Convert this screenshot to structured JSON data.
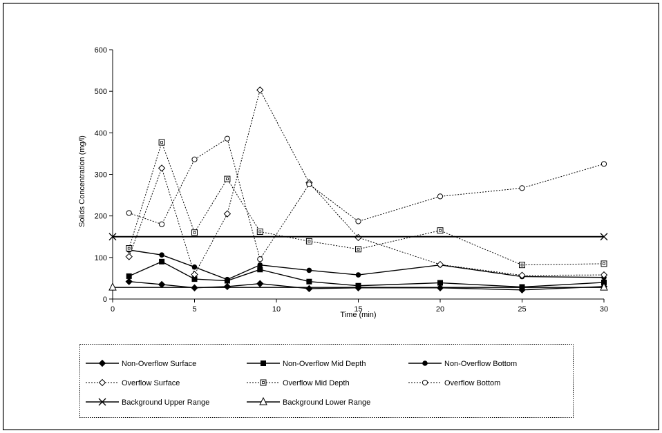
{
  "chart_data": {
    "type": "line",
    "xlabel": "Time (min)",
    "ylabel": "Solids Concentration (mg/l)",
    "xlim": [
      0,
      30
    ],
    "ylim": [
      0,
      600
    ],
    "xticks": [
      0,
      5,
      10,
      15,
      20,
      25,
      30
    ],
    "yticks": [
      0,
      100,
      200,
      300,
      400,
      500,
      600
    ],
    "legend_position": "bottom",
    "series": [
      {
        "name": "Non-Overflow Surface",
        "style": "solid",
        "marker": "diamond-filled",
        "x": [
          1,
          3,
          5,
          7,
          9,
          12,
          15,
          20,
          25,
          30
        ],
        "y": [
          42,
          35,
          27,
          30,
          37,
          25,
          27,
          27,
          22,
          30
        ]
      },
      {
        "name": "Non-Overflow Mid Depth",
        "style": "solid",
        "marker": "square-filled",
        "x": [
          1,
          3,
          5,
          7,
          9,
          12,
          15,
          20,
          25,
          30
        ],
        "y": [
          55,
          90,
          48,
          44,
          71,
          42,
          32,
          39,
          29,
          40
        ]
      },
      {
        "name": "Non-Overflow Bottom",
        "style": "solid",
        "marker": "circle-filled",
        "x": [
          1,
          3,
          5,
          7,
          9,
          12,
          15,
          20,
          25,
          30
        ],
        "y": [
          118,
          106,
          77,
          47,
          82,
          69,
          58,
          82,
          54,
          52
        ]
      },
      {
        "name": "Overflow Surface",
        "style": "dashed",
        "marker": "diamond-open",
        "x": [
          1,
          3,
          5,
          7,
          9,
          12,
          15,
          20,
          25,
          30
        ],
        "y": [
          102,
          315,
          59,
          205,
          503,
          280,
          148,
          83,
          57,
          58
        ]
      },
      {
        "name": "Overflow Mid Depth",
        "style": "dashed",
        "marker": "square-open",
        "x": [
          1,
          3,
          5,
          7,
          9,
          12,
          15,
          20,
          25,
          30
        ],
        "y": [
          122,
          377,
          160,
          289,
          162,
          139,
          120,
          165,
          82,
          85
        ]
      },
      {
        "name": "Overflow Bottom",
        "style": "dashed",
        "marker": "circle-open",
        "x": [
          1,
          3,
          5,
          7,
          9,
          12,
          15,
          20,
          25,
          30
        ],
        "y": [
          207,
          180,
          336,
          386,
          96,
          276,
          187,
          247,
          267,
          325
        ]
      },
      {
        "name": "Background Upper Range",
        "style": "solid",
        "marker": "x",
        "x": [
          0,
          30
        ],
        "y": [
          150,
          150
        ]
      },
      {
        "name": "Background Lower Range",
        "style": "solid",
        "marker": "triangle-open",
        "x": [
          0,
          30
        ],
        "y": [
          28,
          28
        ]
      }
    ]
  },
  "colors": {
    "line": "#000000",
    "background": "#ffffff"
  }
}
